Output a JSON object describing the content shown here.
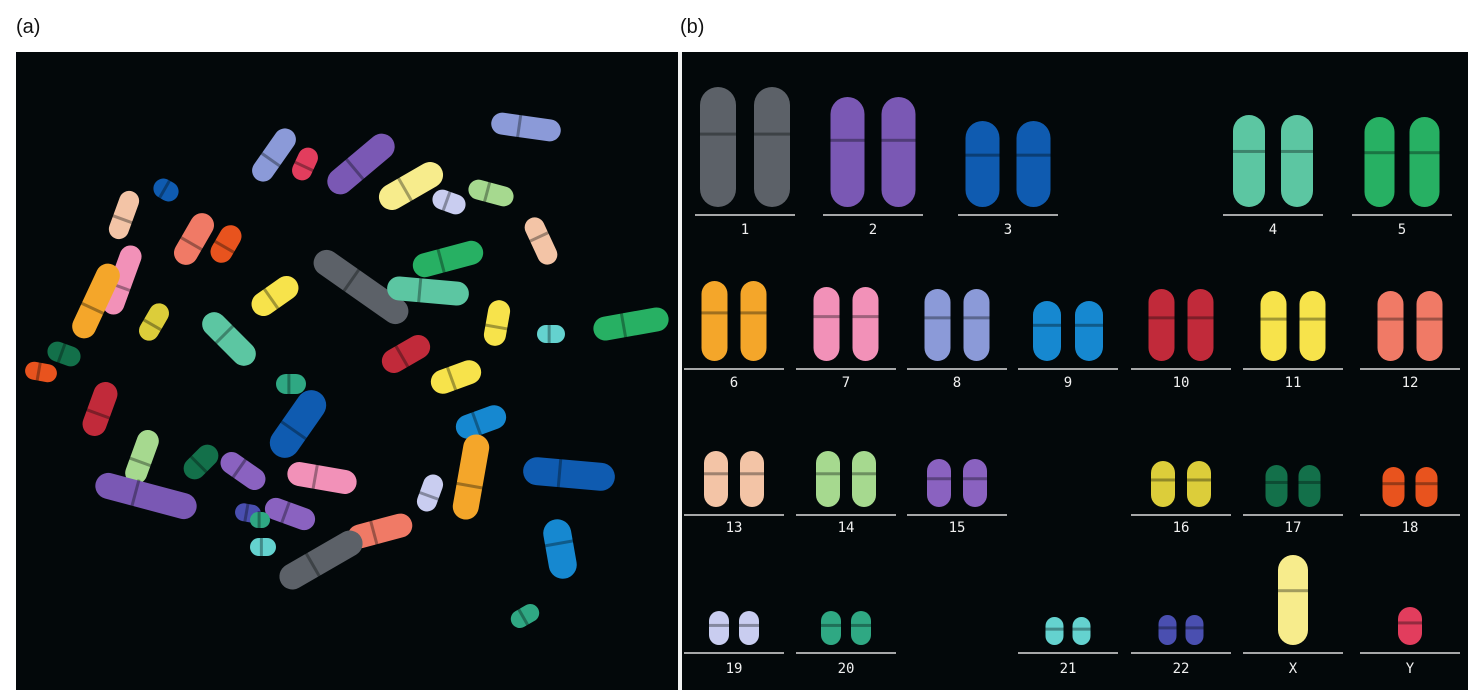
{
  "panels": {
    "a": {
      "label": "(a)"
    },
    "b": {
      "label": "(b)"
    }
  },
  "karyotype": {
    "labels": [
      "1",
      "2",
      "3",
      "4",
      "5",
      "6",
      "7",
      "8",
      "9",
      "10",
      "11",
      "12",
      "13",
      "14",
      "15",
      "16",
      "17",
      "18",
      "19",
      "20",
      "21",
      "22",
      "X",
      "Y"
    ],
    "colors": {
      "1": "#5c6168",
      "2": "#7a58b4",
      "3": "#0f5bb0",
      "4": "#5cc6a2",
      "5": "#27b063",
      "6": "#f4a62a",
      "7": "#f291b8",
      "8": "#8b9ad8",
      "9": "#1688d0",
      "10": "#c12a3a",
      "11": "#f7e34b",
      "12": "#f07a66",
      "13": "#f3c4a6",
      "14": "#a6d98f",
      "15": "#8a62c0",
      "16": "#dccd3a",
      "17": "#13704a",
      "18": "#e8531e",
      "19": "#c9cdf0",
      "20": "#2fa883",
      "21": "#64d2cf",
      "22": "#4a4fb0",
      "X": "#f7ec8c",
      "Y": "#e23d5d"
    }
  }
}
